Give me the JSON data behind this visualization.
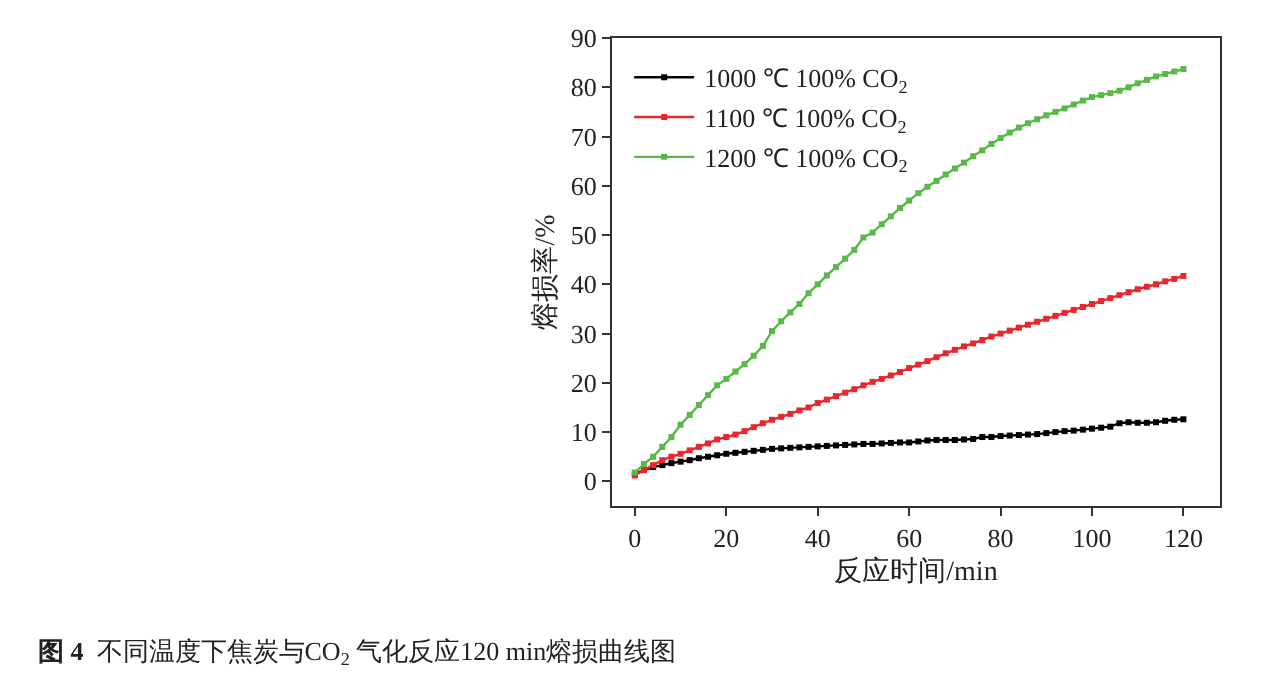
{
  "chart_data": {
    "type": "line",
    "xlabel": "反应时间/min",
    "ylabel": "熔损率/%",
    "annotations": [
      "图 4  不同温度下焦炭与CO$_{2}$ 气化反应120 min熔损曲线图"
    ],
    "x": [
      0,
      2,
      4,
      6,
      8,
      10,
      12,
      14,
      16,
      18,
      20,
      22,
      24,
      26,
      28,
      30,
      32,
      34,
      36,
      38,
      40,
      42,
      44,
      46,
      48,
      50,
      52,
      54,
      56,
      58,
      60,
      62,
      64,
      66,
      68,
      70,
      72,
      74,
      76,
      78,
      80,
      82,
      84,
      86,
      88,
      90,
      92,
      94,
      96,
      98,
      100,
      102,
      104,
      106,
      108,
      110,
      112,
      114,
      116,
      118,
      120
    ],
    "series": [
      {
        "name": "1000 ℃ 100% CO$_{2}$",
        "color": "#000000",
        "values": [
          1.5,
          2.3,
          2.9,
          3.3,
          3.7,
          4.0,
          4.3,
          4.7,
          5.0,
          5.3,
          5.6,
          5.8,
          6.0,
          6.2,
          6.4,
          6.6,
          6.7,
          6.8,
          6.9,
          7.0,
          7.1,
          7.2,
          7.3,
          7.4,
          7.5,
          7.6,
          7.6,
          7.7,
          7.8,
          7.9,
          7.9,
          8.1,
          8.3,
          8.4,
          8.4,
          8.4,
          8.5,
          8.6,
          9.0,
          9.0,
          9.2,
          9.3,
          9.4,
          9.5,
          9.6,
          9.8,
          10.0,
          10.2,
          10.3,
          10.5,
          10.7,
          10.9,
          11.1,
          11.8,
          12.0,
          11.9,
          11.9,
          12.0,
          12.3,
          12.5,
          12.6
        ]
      },
      {
        "name": "1100 ℃ 100% CO$_{2}$",
        "color": "#e8262b",
        "values": [
          1.2,
          2.3,
          3.3,
          4.3,
          5.0,
          5.6,
          6.3,
          7.0,
          7.7,
          8.5,
          9.0,
          9.5,
          10.2,
          11.0,
          11.8,
          12.5,
          13.1,
          13.7,
          14.4,
          15.0,
          15.9,
          16.6,
          17.3,
          18.0,
          18.7,
          19.5,
          20.2,
          20.8,
          21.5,
          22.2,
          23.0,
          23.7,
          24.4,
          25.2,
          26.0,
          26.7,
          27.4,
          28.0,
          28.7,
          29.4,
          30.0,
          30.6,
          31.2,
          31.8,
          32.4,
          33.0,
          33.6,
          34.2,
          34.8,
          35.4,
          36.0,
          36.6,
          37.2,
          37.8,
          38.4,
          39.0,
          39.5,
          40.0,
          40.6,
          41.1,
          41.7
        ]
      },
      {
        "name": "1200 ℃ 100% CO$_{2}$",
        "color": "#58b848",
        "values": [
          1.8,
          3.5,
          5.0,
          7.0,
          9.0,
          11.5,
          13.5,
          15.5,
          17.5,
          19.5,
          20.8,
          22.3,
          23.8,
          25.5,
          27.5,
          30.5,
          32.5,
          34.3,
          36.0,
          38.2,
          40.0,
          41.8,
          43.5,
          45.2,
          47.0,
          49.5,
          50.5,
          52.2,
          53.8,
          55.5,
          57.0,
          58.5,
          59.8,
          61.0,
          62.3,
          63.5,
          64.7,
          66.0,
          67.2,
          68.5,
          69.7,
          70.8,
          71.8,
          72.7,
          73.5,
          74.3,
          75.0,
          75.7,
          76.5,
          77.3,
          78.0,
          78.4,
          78.8,
          79.3,
          80.0,
          80.8,
          81.5,
          82.2,
          82.7,
          83.2,
          83.7
        ]
      }
    ],
    "xlim": [
      -5,
      128
    ],
    "xticks": [
      0,
      20,
      40,
      60,
      80,
      100,
      120
    ],
    "ylim": [
      -5,
      90
    ],
    "yticks": [
      0,
      10,
      20,
      30,
      40,
      50,
      60,
      70,
      80,
      90
    ],
    "legend": "top left",
    "marker": "square",
    "line_style": "solid"
  }
}
